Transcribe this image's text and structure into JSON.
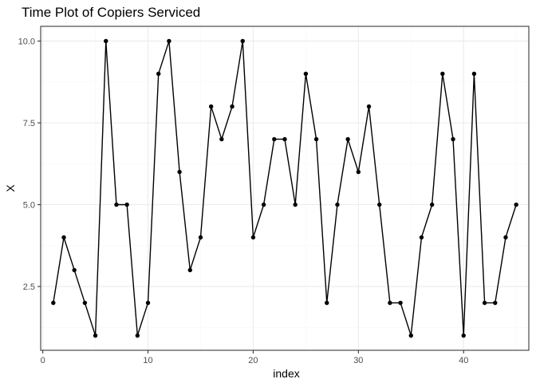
{
  "chart_data": {
    "type": "line",
    "title": "Time Plot of Copiers Serviced",
    "xlabel": "index",
    "ylabel": "X",
    "x": [
      1,
      2,
      3,
      4,
      5,
      6,
      7,
      8,
      9,
      10,
      11,
      12,
      13,
      14,
      15,
      16,
      17,
      18,
      19,
      20,
      21,
      22,
      23,
      24,
      25,
      26,
      27,
      28,
      29,
      30,
      31,
      32,
      33,
      34,
      35,
      36,
      37,
      38,
      39,
      40,
      41,
      42,
      43,
      44,
      45
    ],
    "series": [
      {
        "values": [
          2,
          4,
          3,
          2,
          1,
          10,
          5,
          5,
          1,
          2,
          9,
          10,
          6,
          3,
          4,
          8,
          7,
          8,
          10,
          4,
          5,
          7,
          7,
          5,
          9,
          7,
          2,
          5,
          7,
          6,
          8,
          5,
          2,
          2,
          1,
          4,
          5,
          9,
          7,
          1,
          9,
          2,
          2,
          4,
          5
        ],
        "color": "#000000"
      }
    ],
    "xlim": [
      -0.2,
      46.2
    ],
    "ylim": [
      0.55,
      10.45
    ],
    "xticks": [
      0,
      10,
      20,
      30,
      40
    ],
    "yticks": [
      2.5,
      5.0,
      7.5,
      10.0
    ],
    "xtick_labels": [
      "0",
      "10",
      "20",
      "30",
      "40"
    ],
    "ytick_labels": [
      "2.5",
      "5.0",
      "7.5",
      "10.0"
    ],
    "grid": true,
    "theme": "bw"
  }
}
